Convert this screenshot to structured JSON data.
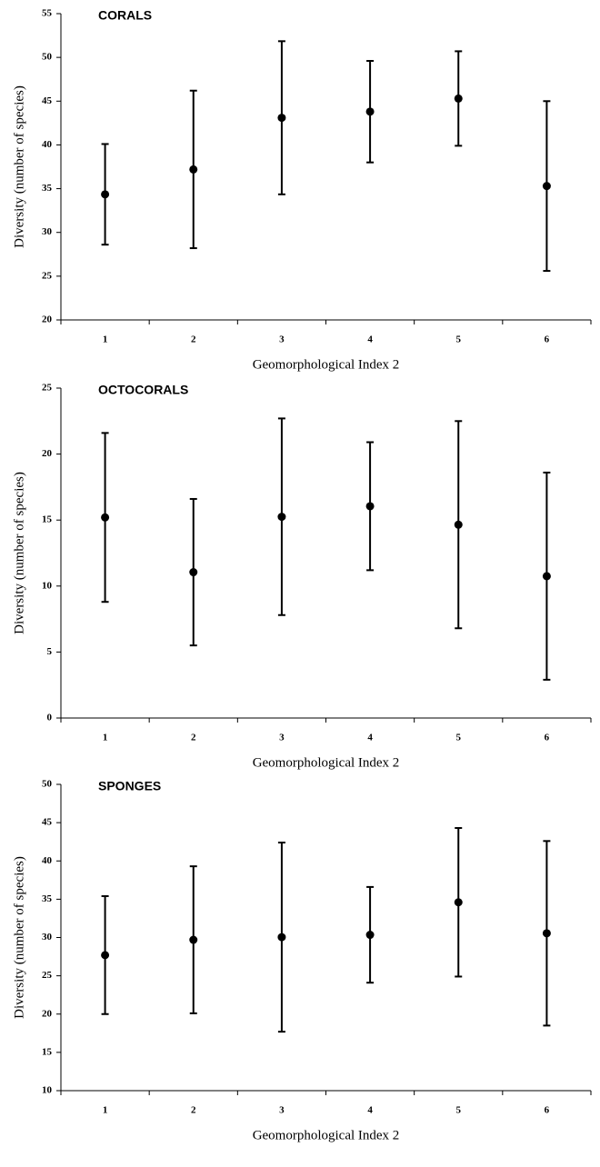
{
  "chart_data": [
    {
      "type": "errorbar",
      "title": "CORALS",
      "x_label": "Geomorphological Index 2",
      "y_label": "Diversity (number of species)",
      "categories": [
        "1",
        "2",
        "3",
        "4",
        "5",
        "6"
      ],
      "values": [
        34.35,
        37.2,
        43.1,
        43.8,
        45.3,
        35.3
      ],
      "errors": [
        5.75,
        9.0,
        8.75,
        5.8,
        5.4,
        9.7
      ],
      "ylim": [
        20,
        55
      ],
      "yticks": [
        20,
        25,
        30,
        35,
        40,
        45,
        50,
        55
      ],
      "color": "#000000"
    },
    {
      "type": "errorbar",
      "title": "OCTOCORALS",
      "x_label": "Geomorphological Index 2",
      "y_label": "Diversity (number of species)",
      "categories": [
        "1",
        "2",
        "3",
        "4",
        "5",
        "6"
      ],
      "values": [
        15.2,
        11.05,
        15.25,
        16.05,
        14.65,
        10.75
      ],
      "errors": [
        6.4,
        5.55,
        7.45,
        4.85,
        7.85,
        7.85
      ],
      "ylim": [
        0,
        25
      ],
      "yticks": [
        0,
        5,
        10,
        15,
        20,
        25
      ],
      "color": "#000000"
    },
    {
      "type": "errorbar",
      "title": "SPONGES",
      "x_label": "Geomorphological Index 2",
      "y_label": "Diversity (number of species)",
      "categories": [
        "1",
        "2",
        "3",
        "4",
        "5",
        "6"
      ],
      "values": [
        27.7,
        29.7,
        30.05,
        30.35,
        34.6,
        30.55
      ],
      "errors": [
        7.7,
        9.6,
        12.35,
        6.25,
        9.7,
        12.05
      ],
      "ylim": [
        10,
        50
      ],
      "yticks": [
        10,
        15,
        20,
        25,
        30,
        35,
        40,
        45,
        50
      ],
      "color": "#000000"
    }
  ]
}
